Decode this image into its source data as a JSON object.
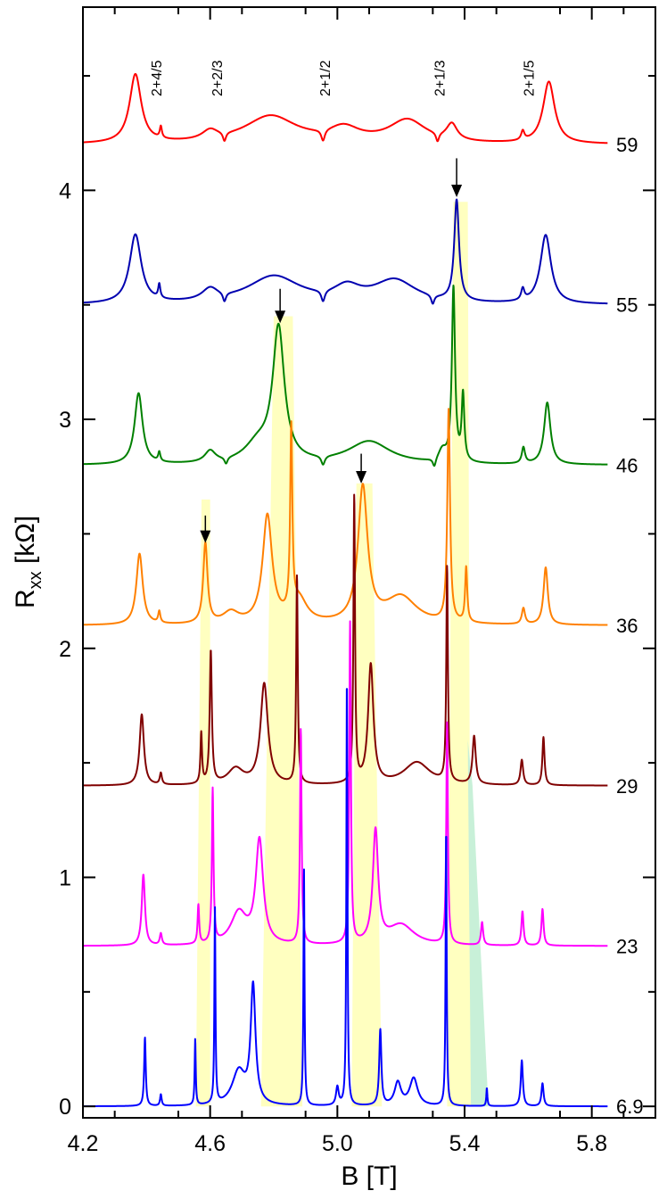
{
  "chart_data": {
    "type": "line",
    "xlabel": "B [T]",
    "ylabel_main": "R",
    "ylabel_sub": "xx",
    "ylabel_unit": " [kΩ]",
    "xlim": [
      4.2,
      6.0
    ],
    "ylim": [
      -0.05,
      4.8
    ],
    "x_ticks": [
      4.2,
      4.6,
      5.0,
      5.4,
      5.8
    ],
    "x_tick_labels": [
      "4.2",
      "4.6",
      "5.0",
      "5.4",
      "5.8"
    ],
    "y_ticks": [
      0,
      1,
      2,
      3,
      4
    ],
    "y_tick_labels": [
      "0",
      "1",
      "2",
      "3",
      "4"
    ],
    "grid": false,
    "state_labels": [
      {
        "text": "2+4/5",
        "x": 4.43
      },
      {
        "text": "2+2/3",
        "x": 4.62
      },
      {
        "text": "2+1/2",
        "x": 4.96
      },
      {
        "text": "2+1/3",
        "x": 5.32
      },
      {
        "text": "2+1/5",
        "x": 5.6
      }
    ],
    "arrows": [
      {
        "x": 4.585,
        "y_top": 2.58,
        "y_tip": 2.46
      },
      {
        "x": 4.82,
        "y_top": 3.57,
        "y_tip": 3.42
      },
      {
        "x": 5.075,
        "y_top": 2.85,
        "y_tip": 2.72
      },
      {
        "x": 5.375,
        "y_top": 4.14,
        "y_tip": 3.97
      }
    ],
    "highlights": [
      {
        "color": "#ffffc0",
        "points": [
          [
            4.555,
            0.0
          ],
          [
            4.6,
            0.0
          ],
          [
            4.6,
            2.65
          ],
          [
            4.573,
            2.65
          ]
        ]
      },
      {
        "color": "#ffffc0",
        "points": [
          [
            4.76,
            0.0
          ],
          [
            4.89,
            0.0
          ],
          [
            4.86,
            3.45
          ],
          [
            4.8,
            3.45
          ]
        ]
      },
      {
        "color": "#ffffc0",
        "points": [
          [
            5.045,
            0.0
          ],
          [
            5.14,
            0.0
          ],
          [
            5.11,
            2.72
          ],
          [
            5.06,
            2.72
          ]
        ]
      },
      {
        "color": "#ffffc0",
        "points": [
          [
            5.345,
            0.0
          ],
          [
            5.42,
            0.0
          ],
          [
            5.41,
            3.95
          ],
          [
            5.365,
            3.95
          ]
        ]
      },
      {
        "color": "#c8f0d8",
        "points": [
          [
            5.42,
            0.0
          ],
          [
            5.475,
            0.0
          ],
          [
            5.425,
            1.4
          ],
          [
            5.41,
            1.6
          ]
        ]
      }
    ],
    "series": [
      {
        "name": "59",
        "color": "#ff0000",
        "baseline": 4.2,
        "features": [
          [
            4.365,
            0.3,
            0.022
          ],
          [
            4.445,
            0.05,
            0.004
          ],
          [
            4.6,
            0.04,
            0.03
          ],
          [
            4.79,
            0.12,
            0.1
          ],
          [
            5.02,
            0.06,
            0.06
          ],
          [
            5.22,
            0.1,
            0.07
          ],
          [
            5.36,
            0.07,
            0.02
          ],
          [
            5.665,
            0.27,
            0.022
          ],
          [
            5.583,
            0.04,
            0.006
          ],
          [
            4.645,
            -0.04,
            0.006
          ],
          [
            4.955,
            -0.05,
            0.007
          ],
          [
            5.315,
            -0.04,
            0.006
          ]
        ]
      },
      {
        "name": "55",
        "color": "#0000b0",
        "baseline": 3.5,
        "features": [
          [
            4.365,
            0.3,
            0.022
          ],
          [
            4.44,
            0.06,
            0.004
          ],
          [
            4.6,
            0.05,
            0.03
          ],
          [
            4.8,
            0.12,
            0.1
          ],
          [
            5.03,
            0.06,
            0.05
          ],
          [
            5.18,
            0.1,
            0.08
          ],
          [
            5.375,
            0.44,
            0.009
          ],
          [
            5.655,
            0.3,
            0.02
          ],
          [
            5.583,
            0.05,
            0.006
          ],
          [
            4.645,
            -0.04,
            0.006
          ],
          [
            4.955,
            -0.05,
            0.007
          ],
          [
            5.3,
            -0.04,
            0.006
          ]
        ]
      },
      {
        "name": "46",
        "color": "#008000",
        "baseline": 2.8,
        "features": [
          [
            4.375,
            0.31,
            0.015
          ],
          [
            4.44,
            0.04,
            0.004
          ],
          [
            4.6,
            0.05,
            0.02
          ],
          [
            4.75,
            0.08,
            0.05
          ],
          [
            4.815,
            0.58,
            0.022
          ],
          [
            5.1,
            0.1,
            0.08
          ],
          [
            5.33,
            0.05,
            0.015
          ],
          [
            5.365,
            0.76,
            0.006
          ],
          [
            5.395,
            0.29,
            0.005
          ],
          [
            5.585,
            0.07,
            0.006
          ],
          [
            5.66,
            0.27,
            0.012
          ],
          [
            4.65,
            -0.03,
            0.006
          ],
          [
            4.955,
            -0.04,
            0.007
          ],
          [
            5.305,
            -0.04,
            0.006
          ]
        ]
      },
      {
        "name": "36",
        "color": "#ff8000",
        "baseline": 2.1,
        "features": [
          [
            4.378,
            0.31,
            0.012
          ],
          [
            4.44,
            0.05,
            0.004
          ],
          [
            4.585,
            0.35,
            0.008
          ],
          [
            4.665,
            0.05,
            0.03
          ],
          [
            4.78,
            0.47,
            0.018
          ],
          [
            4.855,
            0.8,
            0.004
          ],
          [
            4.88,
            0.1,
            0.03
          ],
          [
            5.08,
            0.59,
            0.018
          ],
          [
            5.2,
            0.12,
            0.06
          ],
          [
            5.35,
            0.93,
            0.005
          ],
          [
            5.405,
            0.24,
            0.004
          ],
          [
            5.585,
            0.07,
            0.006
          ],
          [
            5.655,
            0.25,
            0.008
          ]
        ]
      },
      {
        "name": "29",
        "color": "#800000",
        "baseline": 1.4,
        "features": [
          [
            4.385,
            0.31,
            0.008
          ],
          [
            4.445,
            0.05,
            0.004
          ],
          [
            4.572,
            0.22,
            0.003
          ],
          [
            4.602,
            0.58,
            0.004
          ],
          [
            4.68,
            0.07,
            0.03
          ],
          [
            4.77,
            0.44,
            0.014
          ],
          [
            4.873,
            0.91,
            0.003
          ],
          [
            5.053,
            1.25,
            0.003
          ],
          [
            5.105,
            0.52,
            0.01
          ],
          [
            5.25,
            0.1,
            0.05
          ],
          [
            5.345,
            0.94,
            0.003
          ],
          [
            5.43,
            0.21,
            0.006
          ],
          [
            5.58,
            0.11,
            0.005
          ],
          [
            5.648,
            0.21,
            0.004
          ]
        ]
      },
      {
        "name": "23",
        "color": "#ff00ff",
        "baseline": 0.7,
        "features": [
          [
            4.39,
            0.31,
            0.006
          ],
          [
            4.445,
            0.05,
            0.004
          ],
          [
            4.563,
            0.17,
            0.003
          ],
          [
            4.608,
            0.67,
            0.003
          ],
          [
            4.69,
            0.14,
            0.03
          ],
          [
            4.755,
            0.45,
            0.014
          ],
          [
            4.885,
            0.94,
            0.003
          ],
          [
            5.04,
            1.4,
            0.003
          ],
          [
            5.12,
            0.49,
            0.01
          ],
          [
            5.2,
            0.09,
            0.05
          ],
          [
            5.345,
            0.97,
            0.003
          ],
          [
            5.455,
            0.1,
            0.004
          ],
          [
            5.582,
            0.15,
            0.004
          ],
          [
            5.645,
            0.16,
            0.004
          ]
        ]
      },
      {
        "name": "6.9",
        "color": "#0000ff",
        "baseline": 0.0,
        "features": [
          [
            4.395,
            0.3,
            0.003
          ],
          [
            4.445,
            0.05,
            0.003
          ],
          [
            4.553,
            0.29,
            0.002
          ],
          [
            4.615,
            0.86,
            0.002
          ],
          [
            4.69,
            0.15,
            0.025
          ],
          [
            4.735,
            0.51,
            0.009
          ],
          [
            4.895,
            1.04,
            0.002
          ],
          [
            5.0,
            0.08,
            0.005
          ],
          [
            5.03,
            1.89,
            0.002
          ],
          [
            5.135,
            0.33,
            0.004
          ],
          [
            5.19,
            0.1,
            0.012
          ],
          [
            5.24,
            0.12,
            0.015
          ],
          [
            5.342,
            1.22,
            0.002
          ],
          [
            5.47,
            0.08,
            0.002
          ],
          [
            5.58,
            0.2,
            0.004
          ],
          [
            5.645,
            0.1,
            0.004
          ]
        ]
      }
    ]
  }
}
